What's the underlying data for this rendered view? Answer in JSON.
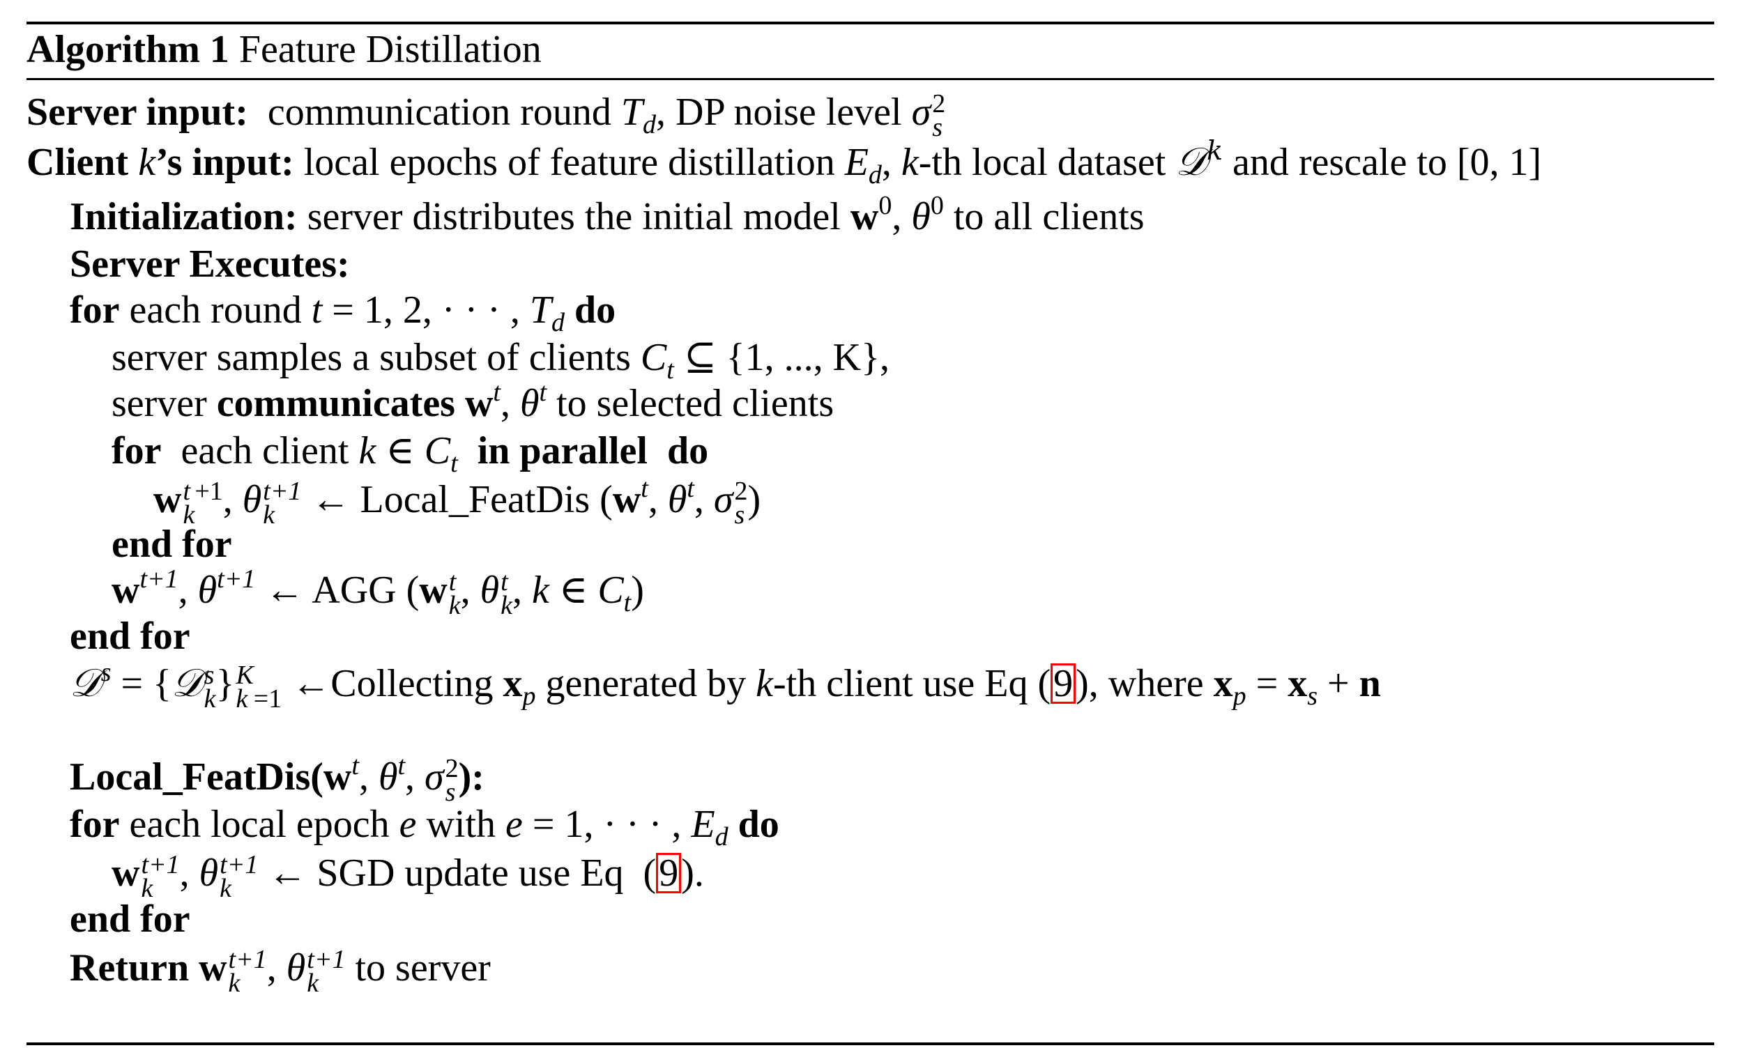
{
  "algorithm": {
    "label": "Algorithm 1",
    "title": "Feature Distillation"
  },
  "server_input": {
    "label": "Server input:",
    "text_a": "communication round",
    "text_b": ", DP noise level"
  },
  "client_input": {
    "label_a": "Client",
    "label_b": "’s input:",
    "text_a": "local epochs of feature distillation",
    "text_b": "-th local dataset",
    "text_c": "and rescale to",
    "range": "[0, 1]"
  },
  "init": {
    "label": "Initialization:",
    "text_a": "server distributes the initial model",
    "text_b": "to all clients"
  },
  "server_exec": {
    "label": "Server Executes:"
  },
  "loop1": {
    "kw_for": "for",
    "text": "each round",
    "range": "= 1, 2, · · · ,",
    "kw_do": "do"
  },
  "sample": {
    "text": "server samples a subset of clients",
    "set": "⊆ {1, ..., K},"
  },
  "communicate": {
    "text_a": "server",
    "bold": "communicates",
    "text_b": "to selected clients"
  },
  "loop2": {
    "kw_for": "for",
    "text": "each client",
    "kw_parallel": "in parallel",
    "kw_do": "do"
  },
  "local_call": {
    "arrow": "←",
    "fn": "Local_FeatDis"
  },
  "end_for_1": "end for",
  "agg": {
    "arrow": "←",
    "fn": "AGG"
  },
  "end_for_2": "end for",
  "collect": {
    "arrow": "←",
    "text_a": "Collecting",
    "text_b": "generated by",
    "text_c": "-th client use Eq",
    "ref": "9",
    "text_d": "), where"
  },
  "local_def": {
    "label": "Local_FeatDis("
  },
  "loop3": {
    "kw_for": "for",
    "text_a": "each local epoch",
    "text_b": "with",
    "range": "= 1, · · · ,",
    "kw_do": "do"
  },
  "sgd": {
    "arrow": "←",
    "text": "SGD update use Eq",
    "ref": "9",
    "tail": ")."
  },
  "end_for_3": "end for",
  "ret": {
    "kw": "Return",
    "text": "to server"
  }
}
